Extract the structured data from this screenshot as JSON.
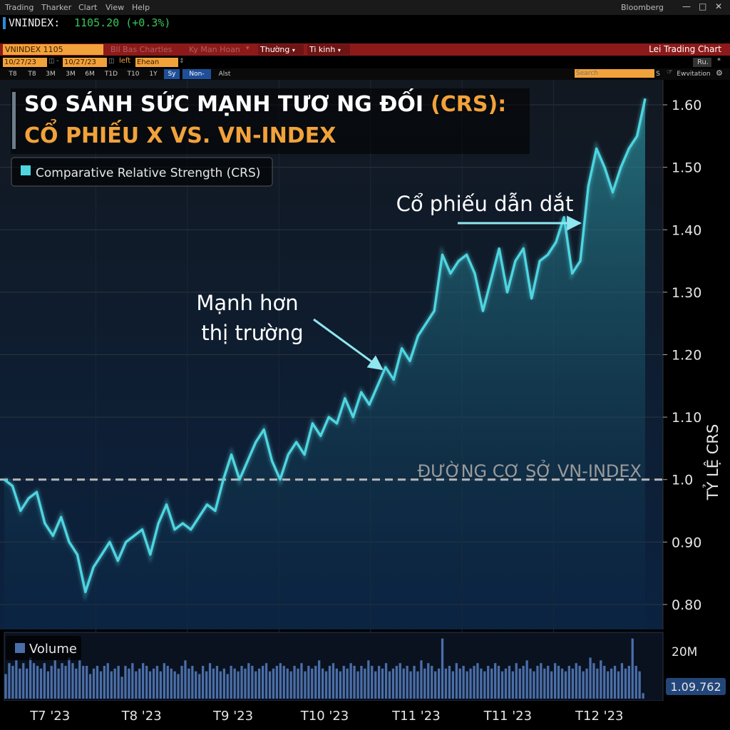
{
  "menu": {
    "items": [
      "Trading",
      "Tharker",
      "Clart",
      "View",
      "Help"
    ],
    "brand": "Bloomberg"
  },
  "ticker": {
    "symbol": "VNINDEX:",
    "value": "1105.20 (+0.3%)"
  },
  "toolbar": {
    "security": "VNINDEX 1105",
    "faded1": "Bll Bas Chartles",
    "faded2": "Ky Man Hoan",
    "menu_thuong": "Thường",
    "menu_tikinh": "Ti kinh",
    "chart_title": "Lei Trading Chart",
    "date_from": "10/27/23",
    "date_to": "10/27/23",
    "left_label": "left",
    "mode": "Ehean",
    "ru": "Ru.",
    "search_placeholder": "Search",
    "s_label": "S",
    "ewvitation": "Ewvitation",
    "periods": [
      "T8",
      "T8",
      "3M",
      "3M",
      "6M",
      "T1D",
      "T10",
      "1Y",
      "Sy",
      "Non-",
      "Alst"
    ]
  },
  "colors": {
    "line": "#4fd5e0",
    "accent": "#f2a23a",
    "toolbar_red": "#8d1a1a",
    "volume": "#4a6ea8",
    "gain": "#34c759"
  },
  "chart_data": {
    "type": "line",
    "title_line1_white": "SO SÁNH SỨC MẠNH TƯƠ NG ĐỐI",
    "title_line1_orange": "(CRS):",
    "title_line2": "CỔ PHIẾU X VS. VN-INDEX",
    "legend": "Comparative Relative Strength (CRS)",
    "ylabel": "TỶ LỆ CRS",
    "ylim": [
      0.76,
      1.64
    ],
    "yticks": [
      0.8,
      0.9,
      1.0,
      1.1,
      1.2,
      1.3,
      1.4,
      1.5,
      1.6
    ],
    "ytick_labels": [
      "0.80",
      "0.90",
      "1.0",
      "1.10",
      "1.20",
      "1.30",
      "1.40",
      "1.50",
      "1.60"
    ],
    "x_labels": [
      "T7 '23",
      "T8 '23",
      "T9 '23",
      "T10 '23",
      "T11 '23",
      "T11 '23",
      "T12 '23"
    ],
    "baseline": {
      "value": 1.0,
      "label": "ĐƯỜNG CƠ SỞ VN-INDEX"
    },
    "annotations": [
      {
        "text_lines": [
          "Mạnh hơn",
          "thị trường"
        ]
      },
      {
        "text_lines": [
          "Cổ phiếu dẫn dắt"
        ]
      }
    ],
    "series": [
      {
        "name": "Comparative Relative Strength (CRS)",
        "values": [
          1.0,
          0.99,
          0.95,
          0.97,
          0.98,
          0.93,
          0.91,
          0.94,
          0.9,
          0.88,
          0.82,
          0.86,
          0.88,
          0.9,
          0.87,
          0.9,
          0.91,
          0.92,
          0.88,
          0.93,
          0.96,
          0.92,
          0.93,
          0.92,
          0.94,
          0.96,
          0.95,
          1.0,
          1.04,
          1.0,
          1.03,
          1.06,
          1.08,
          1.03,
          1.0,
          1.04,
          1.06,
          1.04,
          1.09,
          1.07,
          1.1,
          1.09,
          1.13,
          1.1,
          1.14,
          1.12,
          1.15,
          1.18,
          1.16,
          1.21,
          1.19,
          1.23,
          1.25,
          1.27,
          1.36,
          1.33,
          1.35,
          1.36,
          1.33,
          1.27,
          1.32,
          1.37,
          1.3,
          1.35,
          1.37,
          1.29,
          1.35,
          1.36,
          1.38,
          1.42,
          1.33,
          1.35,
          1.47,
          1.53,
          1.5,
          1.46,
          1.5,
          1.53,
          1.55,
          1.61
        ]
      }
    ],
    "volume": {
      "label": "Volume",
      "tick_label": "20M",
      "last_value": "1.09.762",
      "ylim": [
        0,
        24
      ],
      "values": [
        9,
        13,
        12,
        14,
        11,
        13,
        11,
        15,
        13,
        12,
        11,
        13,
        10,
        12,
        14,
        11,
        13,
        12,
        15,
        13,
        11,
        14,
        12,
        12,
        9,
        11,
        12,
        10,
        12,
        13,
        10,
        11,
        12,
        8,
        12,
        11,
        13,
        10,
        11,
        13,
        12,
        10,
        11,
        12,
        10,
        13,
        12,
        11,
        10,
        9,
        12,
        14,
        11,
        12,
        10,
        9,
        12,
        10,
        13,
        11,
        12,
        10,
        11,
        9,
        12,
        11,
        10,
        12,
        11,
        13,
        12,
        10,
        11,
        12,
        13,
        10,
        11,
        12,
        13,
        12,
        11,
        10,
        12,
        11,
        13,
        10,
        12,
        11,
        12,
        14,
        11,
        10,
        12,
        13,
        11,
        10,
        12,
        11,
        13,
        12,
        10,
        12,
        11,
        14,
        12,
        10,
        12,
        11,
        13,
        10,
        11,
        12,
        13,
        11,
        12,
        10,
        12,
        10,
        14,
        11,
        13,
        12,
        10,
        11,
        22,
        11,
        12,
        10,
        13,
        11,
        12,
        10,
        11,
        12,
        13,
        11,
        10,
        12,
        11,
        13,
        12,
        10,
        11,
        12,
        10,
        13,
        11,
        12,
        14,
        11,
        10,
        12,
        13,
        11,
        12,
        10,
        13,
        12,
        11,
        10,
        12,
        11,
        13,
        12,
        10,
        11,
        15,
        13,
        11,
        14,
        12,
        10,
        11,
        12,
        10,
        13,
        11,
        12,
        22,
        12,
        10,
        2
      ]
    }
  }
}
